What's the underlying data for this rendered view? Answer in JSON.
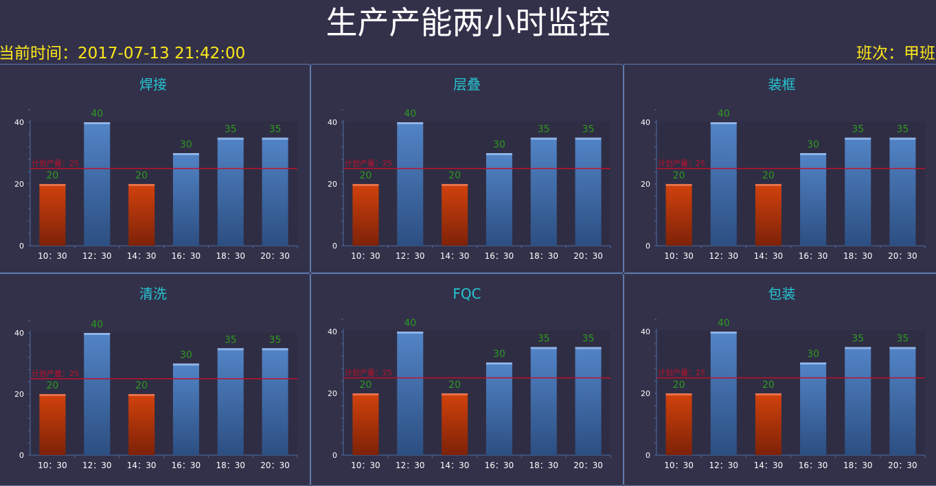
{
  "header": {
    "title": "生产产能两小时监控",
    "current_time": "当前时间：2017-07-13 21:42:00",
    "shift": "班次：甲班"
  },
  "colors": {
    "background": "#33314a",
    "title": "#ffffff",
    "header_info": "#ffe81a",
    "panel_border": "#5f7cb0",
    "panel_title": "#26c6d2",
    "bar_above": "#4a7cbf",
    "bar_below": "#c8380a",
    "value_label": "#2d9b1f",
    "plan_line": "#c0102b"
  },
  "chart_data": [
    {
      "type": "bar",
      "title": "焊接",
      "categories": [
        "10：30",
        "12：30",
        "14：30",
        "16：30",
        "18：30",
        "20：30"
      ],
      "values": [
        20,
        40,
        20,
        30,
        35,
        35
      ],
      "yticks": [
        "0",
        "20",
        "40"
      ],
      "ylim": [
        0,
        44
      ],
      "plan_value": 25,
      "plan_label": "计划产量：25"
    },
    {
      "type": "bar",
      "title": "层叠",
      "categories": [
        "10：30",
        "12：30",
        "14：30",
        "16：30",
        "18：30",
        "20：30"
      ],
      "values": [
        20,
        40,
        20,
        30,
        35,
        35
      ],
      "yticks": [
        "0",
        "20",
        "40"
      ],
      "ylim": [
        0,
        44
      ],
      "plan_value": 25,
      "plan_label": "计划产量：25"
    },
    {
      "type": "bar",
      "title": "装框",
      "categories": [
        "10：30",
        "12：30",
        "14：30",
        "16：30",
        "18：30",
        "20：30"
      ],
      "values": [
        20,
        40,
        20,
        30,
        35,
        35
      ],
      "yticks": [
        "0",
        "20",
        "40"
      ],
      "ylim": [
        0,
        44
      ],
      "plan_value": 25,
      "plan_label": "计划产量：25"
    },
    {
      "type": "bar",
      "title": "清洗",
      "categories": [
        "10：30",
        "12：30",
        "14：30",
        "16：30",
        "18：30",
        "20：30"
      ],
      "values": [
        20,
        40,
        20,
        30,
        35,
        35
      ],
      "yticks": [
        "0",
        "20",
        "40"
      ],
      "ylim": [
        0,
        44
      ],
      "plan_value": 25,
      "plan_label": "计划产量：25"
    },
    {
      "type": "bar",
      "title": "FQC",
      "categories": [
        "10：30",
        "12：30",
        "14：30",
        "16：30",
        "18：30",
        "20：30"
      ],
      "values": [
        20,
        40,
        20,
        30,
        35,
        35
      ],
      "yticks": [
        "0",
        "20",
        "40"
      ],
      "ylim": [
        0,
        44
      ],
      "plan_value": 25,
      "plan_label": "计划产量：25"
    },
    {
      "type": "bar",
      "title": "包装",
      "categories": [
        "10：30",
        "12：30",
        "14：30",
        "16：30",
        "18：30",
        "20：30"
      ],
      "values": [
        20,
        40,
        20,
        30,
        35,
        35
      ],
      "yticks": [
        "0",
        "20",
        "40"
      ],
      "ylim": [
        0,
        44
      ],
      "plan_value": 25,
      "plan_label": "计划产量：25"
    }
  ]
}
